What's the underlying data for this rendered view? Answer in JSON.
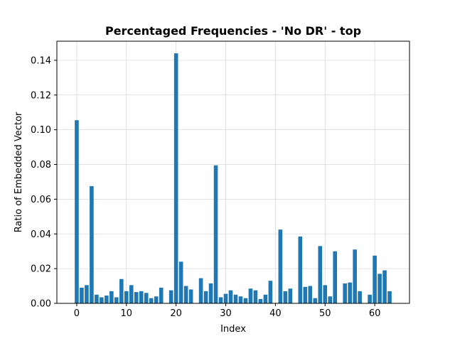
{
  "chart_data": {
    "type": "bar",
    "title": "Percentaged Frequencies - 'No DR' - top",
    "xlabel": "Index",
    "ylabel": "Ratio of Embedded Vector",
    "xlim": [
      -4,
      67
    ],
    "ylim": [
      0,
      0.151
    ],
    "x_ticks": [
      0,
      10,
      20,
      30,
      40,
      50,
      60
    ],
    "x_tick_labels": [
      "0",
      "10",
      "20",
      "30",
      "40",
      "50",
      "60"
    ],
    "y_ticks": [
      0,
      0.02,
      0.04,
      0.06,
      0.08,
      0.1,
      0.12,
      0.14
    ],
    "y_tick_labels": [
      "0.00",
      "0.02",
      "0.04",
      "0.06",
      "0.08",
      "0.10",
      "0.12",
      "0.14"
    ],
    "grid": true,
    "bar_color": "#1f77b4",
    "grid_color": "#d9d9d9",
    "x": [
      0,
      1,
      2,
      3,
      4,
      5,
      6,
      7,
      8,
      9,
      10,
      11,
      12,
      13,
      14,
      15,
      16,
      17,
      18,
      19,
      20,
      21,
      22,
      23,
      24,
      25,
      26,
      27,
      28,
      29,
      30,
      31,
      32,
      33,
      34,
      35,
      36,
      37,
      38,
      39,
      40,
      41,
      42,
      43,
      44,
      45,
      46,
      47,
      48,
      49,
      50,
      51,
      52,
      53,
      54,
      55,
      56,
      57,
      58,
      59,
      60,
      61,
      62,
      63
    ],
    "values": [
      0.1055,
      0.009,
      0.0105,
      0.0675,
      0.005,
      0.0035,
      0.0045,
      0.007,
      0.0035,
      0.014,
      0.007,
      0.0105,
      0.0065,
      0.007,
      0.006,
      0.003,
      0.004,
      0.009,
      0,
      0.0075,
      0.144,
      0.024,
      0.01,
      0.008,
      0,
      0.0145,
      0.007,
      0.0115,
      0.0795,
      0.0035,
      0.0055,
      0.0075,
      0.005,
      0.004,
      0.003,
      0.0085,
      0.0075,
      0.0025,
      0.005,
      0.013,
      0,
      0.0425,
      0.007,
      0.0085,
      0,
      0.0385,
      0.0095,
      0.01,
      0.003,
      0.033,
      0.0105,
      0.004,
      0.03,
      0,
      0.0115,
      0.012,
      0.031,
      0.007,
      0,
      0.005,
      0.0275,
      0.017,
      0.019,
      0.007
    ]
  }
}
